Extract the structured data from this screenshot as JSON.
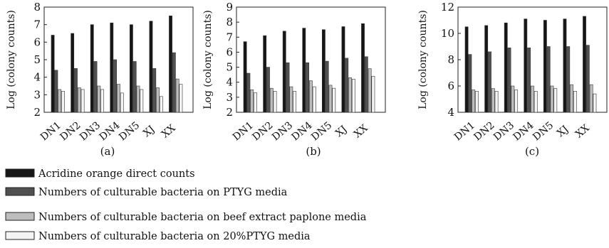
{
  "chart_data": [
    {
      "type": "bar",
      "panel_label": "(a)",
      "ylabel": "Log (colony counts)",
      "ylim": [
        2,
        8
      ],
      "yticks": [
        2,
        3,
        4,
        5,
        6,
        7,
        8
      ],
      "categories": [
        "DN1",
        "DN2",
        "DN3",
        "DN4",
        "DN5",
        "XJ",
        "XX"
      ],
      "series": [
        {
          "name": "Acridine orange direct counts",
          "color": "#161616",
          "values": [
            6.4,
            6.5,
            7.0,
            7.1,
            7.0,
            7.2,
            7.5
          ]
        },
        {
          "name": "Numbers of culturable bacteria on PTYG media",
          "color": "#505050",
          "values": [
            4.4,
            4.5,
            4.9,
            5.0,
            4.9,
            4.5,
            5.4
          ]
        },
        {
          "name": "Numbers of culturable bacteria on beef extract paplone media",
          "color": "#bdbdbd",
          "values": [
            3.3,
            3.4,
            3.5,
            3.6,
            3.5,
            3.4,
            3.9
          ]
        },
        {
          "name": "Numbers of culturable bacteria on 20%PTYG media",
          "color": "#f4f4f4",
          "values": [
            3.2,
            3.3,
            3.3,
            3.1,
            3.3,
            2.9,
            3.6
          ]
        }
      ]
    },
    {
      "type": "bar",
      "panel_label": "(b)",
      "ylabel": "Log (colony counts)",
      "ylim": [
        2,
        9
      ],
      "yticks": [
        2,
        3,
        4,
        5,
        6,
        7,
        8,
        9
      ],
      "categories": [
        "DN1",
        "DN2",
        "DN3",
        "DN4",
        "DN5",
        "XJ",
        "XX"
      ],
      "series": [
        {
          "name": "Acridine orange direct counts",
          "color": "#161616",
          "values": [
            6.7,
            7.1,
            7.4,
            7.6,
            7.5,
            7.7,
            7.9
          ]
        },
        {
          "name": "Numbers of culturable bacteria on PTYG media",
          "color": "#505050",
          "values": [
            4.6,
            5.0,
            5.3,
            5.3,
            5.4,
            5.6,
            5.7
          ]
        },
        {
          "name": "Numbers of culturable bacteria on beef extract paplone media",
          "color": "#bdbdbd",
          "values": [
            3.5,
            3.6,
            3.7,
            4.1,
            3.8,
            4.3,
            4.9
          ]
        },
        {
          "name": "Numbers of culturable bacteria on 20%PTYG media",
          "color": "#f4f4f4",
          "values": [
            3.3,
            3.4,
            3.4,
            3.7,
            3.6,
            4.2,
            4.4
          ]
        }
      ]
    },
    {
      "type": "bar",
      "panel_label": "(c)",
      "ylabel": "Log (colony counts)",
      "ylim": [
        4,
        12
      ],
      "yticks": [
        4,
        6,
        8,
        10,
        12
      ],
      "categories": [
        "DN1",
        "DN2",
        "DN3",
        "DN4",
        "DN5",
        "XJ",
        "XX"
      ],
      "series": [
        {
          "name": "Acridine orange direct counts",
          "color": "#161616",
          "values": [
            10.5,
            10.6,
            10.8,
            11.1,
            11.0,
            11.1,
            11.3
          ]
        },
        {
          "name": "Numbers of culturable bacteria on PTYG media",
          "color": "#505050",
          "values": [
            8.4,
            8.6,
            8.9,
            8.9,
            9.0,
            9.0,
            9.1
          ]
        },
        {
          "name": "Numbers of culturable bacteria on beef extract paplone media",
          "color": "#bdbdbd",
          "values": [
            5.7,
            5.8,
            6.0,
            6.0,
            6.0,
            6.1,
            6.1
          ]
        },
        {
          "name": "Numbers of culturable bacteria on 20%PTYG media",
          "color": "#f4f4f4",
          "values": [
            5.6,
            5.6,
            5.7,
            5.6,
            5.8,
            5.6,
            5.4
          ]
        }
      ]
    }
  ],
  "legend": {
    "placement": "bottom-left",
    "items": [
      {
        "label": "Acridine orange direct counts",
        "color": "#161616"
      },
      {
        "label": "Numbers of culturable bacteria on PTYG media",
        "color": "#505050"
      },
      {
        "label": "Numbers of culturable bacteria on beef extract paplone media",
        "color": "#bdbdbd"
      },
      {
        "label": "Numbers of culturable bacteria on 20%PTYG media",
        "color": "#f4f4f4"
      }
    ]
  }
}
